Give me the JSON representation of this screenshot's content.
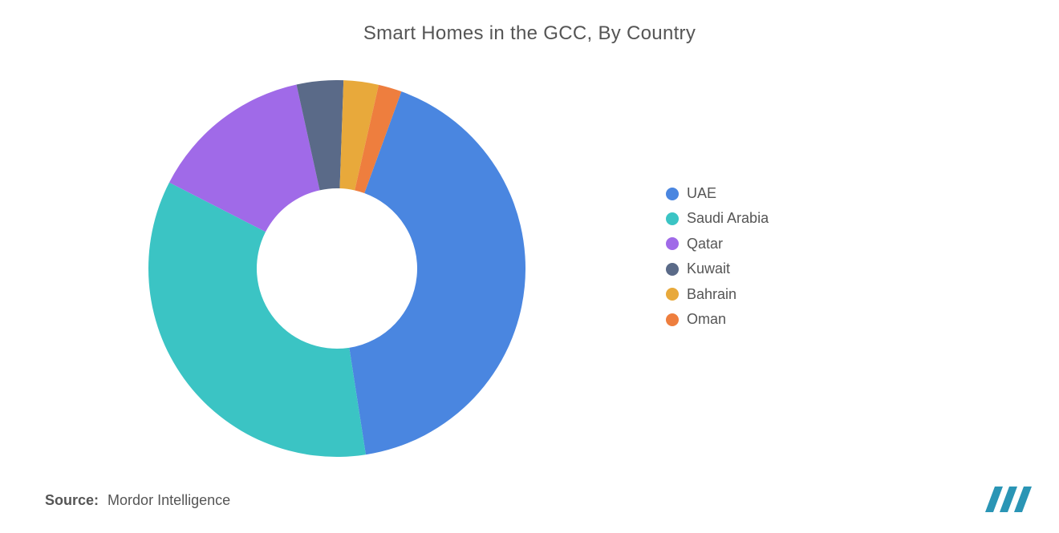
{
  "chart": {
    "type": "donut",
    "title": "Smart Homes in the GCC, By Country",
    "title_fontsize": 24,
    "title_color": "#555555",
    "background_color": "#ffffff",
    "outer_radius": 235,
    "inner_radius": 100,
    "start_angle_deg": -70,
    "direction": "clockwise",
    "series": [
      {
        "label": "UAE",
        "value": 42,
        "color": "#4a86e0"
      },
      {
        "label": "Saudi Arabia",
        "value": 35,
        "color": "#3bc4c4"
      },
      {
        "label": "Qatar",
        "value": 14,
        "color": "#a06ae8"
      },
      {
        "label": "Kuwait",
        "value": 4,
        "color": "#5a6a88"
      },
      {
        "label": "Bahrain",
        "value": 3,
        "color": "#e8a93b"
      },
      {
        "label": "Oman",
        "value": 2,
        "color": "#ee7e3e"
      }
    ],
    "legend": {
      "position": "right",
      "swatch_shape": "circle",
      "swatch_size": 16,
      "font_size": 18,
      "text_color": "#555555"
    }
  },
  "source": {
    "label": "Source:",
    "text": "Mordor Intelligence",
    "font_size": 18,
    "color": "#555555"
  },
  "logo": {
    "name": "mordor-intelligence-logo",
    "bar_color": "#2a95b5",
    "bars": 3
  }
}
